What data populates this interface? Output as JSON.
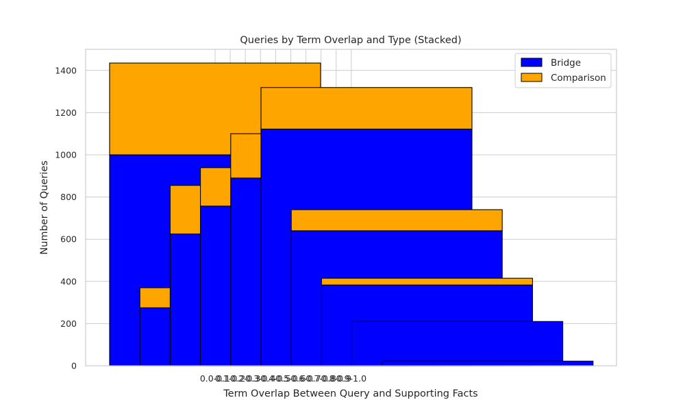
{
  "chart_data": {
    "type": "bar",
    "stacked": true,
    "title": "Queries by Term Overlap and Type (Stacked)",
    "xlabel": "Term Overlap Between Query and Supporting Facts",
    "ylabel": "Number of Queries",
    "categories": [
      "0.0-0.1",
      "0.1-0.2",
      "0.2-0.3",
      "0.3-0.4",
      "0.4-0.5",
      "0.5-0.6",
      "0.6-0.7",
      "0.7-0.8",
      "0.8-0.9",
      "0.9-1.0"
    ],
    "series": [
      {
        "name": "Bridge",
        "color": "#0000ff",
        "values": [
          1000,
          275,
          625,
          757,
          890,
          1122,
          640,
          383,
          210,
          22
        ]
      },
      {
        "name": "Comparison",
        "color": "#ffa500",
        "values": [
          435,
          95,
          230,
          182,
          210,
          197,
          100,
          32,
          0,
          0
        ]
      }
    ],
    "ylim": [
      0,
      1500
    ],
    "yticks": [
      0,
      200,
      400,
      600,
      800,
      1000,
      1200,
      1400
    ],
    "grid": true,
    "legend_position": "top-right"
  }
}
